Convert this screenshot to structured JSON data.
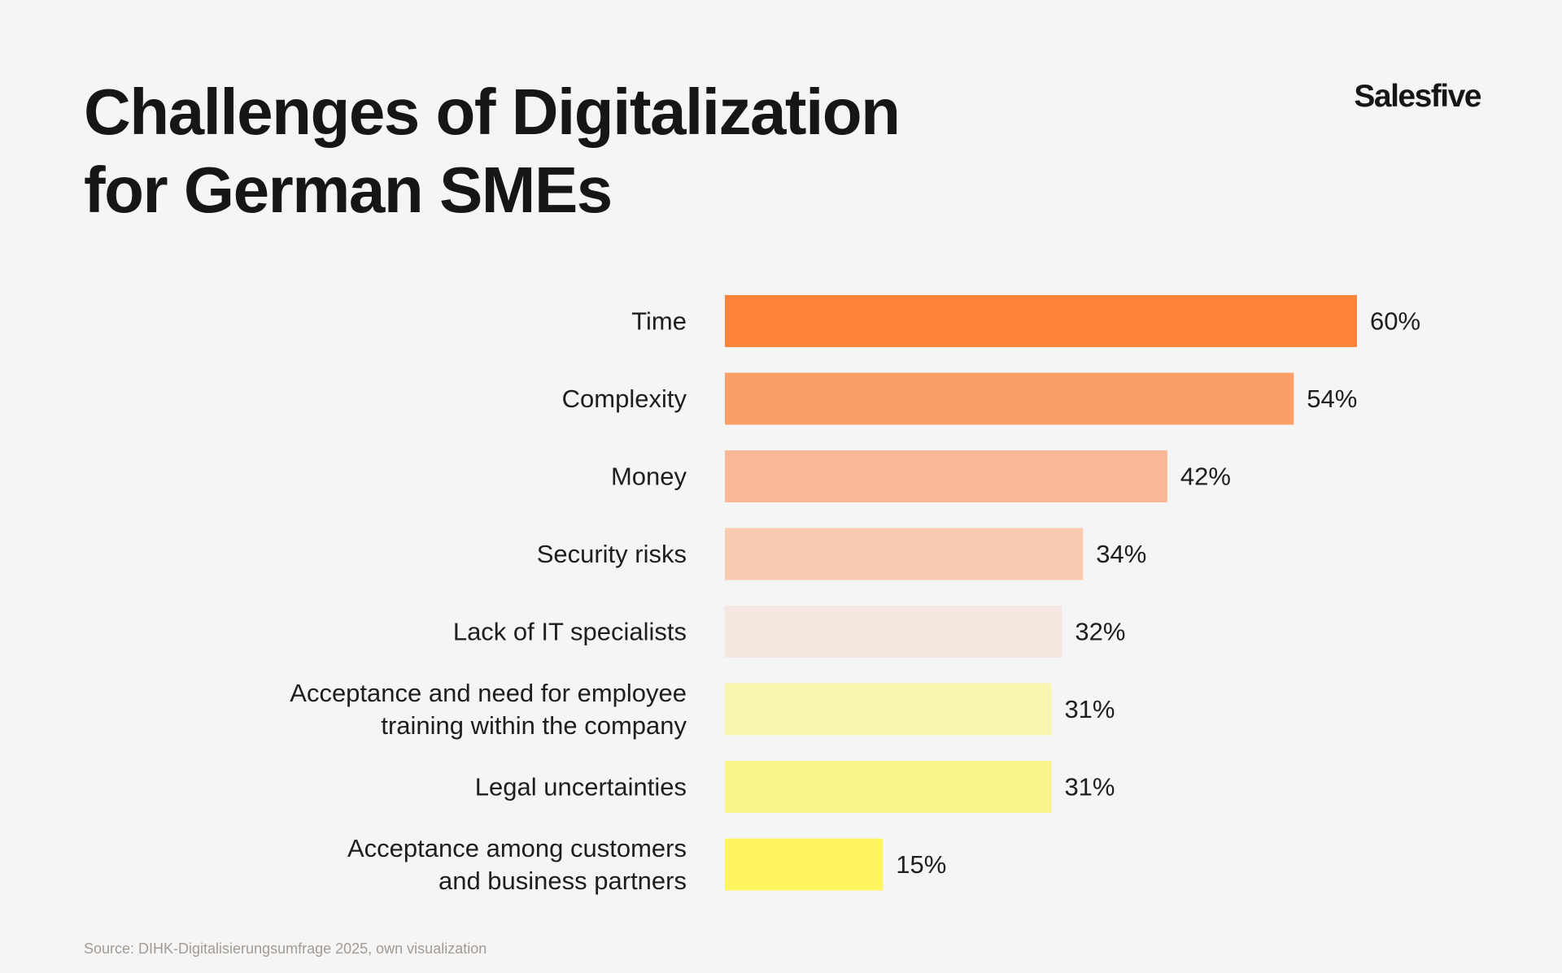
{
  "header": {
    "title_line1": "Challenges of Digitalization",
    "title_line2": "for German SMEs",
    "brand": "Salesfive"
  },
  "footer": {
    "source": "Source: DIHK-Digitalisierungsumfrage 2025, own visualization"
  },
  "chart_data": {
    "type": "bar",
    "orientation": "horizontal",
    "categories": [
      [
        "Time"
      ],
      [
        "Complexity"
      ],
      [
        "Money"
      ],
      [
        "Security risks"
      ],
      [
        "Lack of IT specialists"
      ],
      [
        "Acceptance and need for employee",
        "training within the company"
      ],
      [
        "Legal uncertainties"
      ],
      [
        "Acceptance among customers",
        "and business partners"
      ]
    ],
    "values": [
      60,
      54,
      42,
      34,
      32,
      31,
      31,
      15
    ],
    "value_labels": [
      "60%",
      "54%",
      "42%",
      "34%",
      "32%",
      "31%",
      "31%",
      "15%"
    ],
    "colors": [
      "#ff8339",
      "#fb9f69",
      "#f9b996",
      "#f9cbb1",
      "#f4e8e1",
      "#f9f6b1",
      "#faf68c",
      "#fff65f"
    ],
    "xlim": [
      0,
      60
    ],
    "grid": false,
    "legend": "none"
  }
}
